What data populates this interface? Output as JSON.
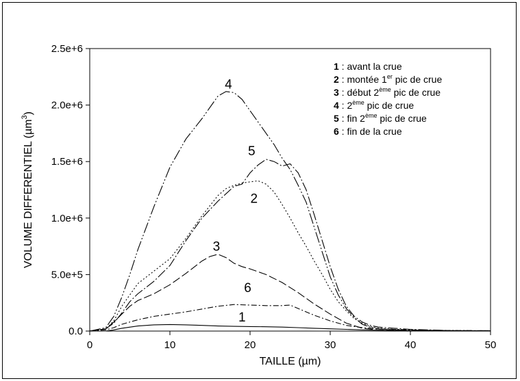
{
  "chart_data": {
    "type": "line",
    "title": "",
    "xlabel": "TAILLE (µm)",
    "ylabel": "VOLUME DIFFERENTIEL (µm",
    "ylabel_sup": "3",
    "ylabel_end": ")",
    "xlim": [
      0,
      50
    ],
    "ylim": [
      0,
      2500000
    ],
    "x_ticks": [
      0,
      10,
      20,
      30,
      40,
      50
    ],
    "x_tick_labels": [
      "0",
      "10",
      "20",
      "30",
      "40",
      "50"
    ],
    "y_ticks": [
      0,
      500000,
      1000000,
      1500000,
      2000000,
      2500000
    ],
    "y_tick_labels": [
      "0.0",
      "5.0e+5",
      "1.0e+6",
      "1.5e+6",
      "2.0e+6",
      "2.5e+6"
    ],
    "grid": false,
    "legend_position": "top-right",
    "legend": [
      {
        "num": "1",
        "text": " : avant la crue"
      },
      {
        "num": "2",
        "pre": " : montée 1",
        "sup": "er",
        "post": " pic de crue"
      },
      {
        "num": "3",
        "pre": " : début 2",
        "sup": "ème",
        "post": " pic de crue"
      },
      {
        "num": "4",
        "pre": " : 2",
        "sup": "ème",
        "post": " pic de crue"
      },
      {
        "num": "5",
        "pre": " : fin 2",
        "sup": "ème",
        "post": " pic de crue"
      },
      {
        "num": "6",
        "text": " : fin de la crue"
      }
    ],
    "series": [
      {
        "label": "1",
        "dash": "none",
        "label_at": [
          19,
          85000
        ],
        "x": [
          0,
          2,
          3,
          4,
          6,
          8,
          10,
          12,
          14,
          16,
          18,
          20,
          22,
          24,
          26,
          28,
          30,
          32,
          34,
          36,
          40,
          45,
          50
        ],
        "y": [
          0,
          0,
          10000,
          25000,
          45000,
          55000,
          58000,
          55000,
          50000,
          45000,
          42000,
          40000,
          38000,
          35000,
          30000,
          25000,
          20000,
          15000,
          10000,
          8000,
          5000,
          3000,
          2000
        ]
      },
      {
        "label": "2",
        "dash": "2,3",
        "label_at": [
          20.5,
          1135000
        ],
        "x": [
          0,
          2,
          3,
          4,
          5,
          6,
          8,
          10,
          12,
          14,
          16,
          17,
          18,
          19,
          20,
          21,
          22,
          23,
          24,
          25,
          26,
          27,
          28,
          29,
          30,
          31,
          32,
          33,
          34,
          35,
          36,
          38,
          40,
          45,
          50
        ],
        "y": [
          0,
          20000,
          90000,
          220000,
          320000,
          420000,
          530000,
          640000,
          820000,
          1020000,
          1200000,
          1260000,
          1290000,
          1310000,
          1320000,
          1330000,
          1300000,
          1230000,
          1120000,
          1000000,
          870000,
          750000,
          620000,
          500000,
          370000,
          260000,
          180000,
          110000,
          70000,
          40000,
          25000,
          15000,
          10000,
          5000,
          3000
        ]
      },
      {
        "label": "3",
        "dash": "12,4",
        "label_at": [
          15.8,
          710000
        ],
        "x": [
          0,
          2,
          3,
          4,
          5,
          6,
          8,
          10,
          12,
          14,
          15,
          16,
          17,
          18,
          19,
          20,
          22,
          24,
          26,
          28,
          30,
          32,
          34,
          36,
          40,
          45,
          50
        ],
        "y": [
          0,
          20000,
          80000,
          150000,
          220000,
          270000,
          330000,
          410000,
          510000,
          620000,
          660000,
          680000,
          650000,
          600000,
          570000,
          550000,
          500000,
          430000,
          340000,
          240000,
          150000,
          70000,
          25000,
          10000,
          5000,
          2000,
          1000
        ]
      },
      {
        "label": "4",
        "dash": "16,3,2,3,2,3",
        "label_at": [
          17.3,
          2145000
        ],
        "x": [
          0,
          2,
          3,
          4,
          5,
          6,
          8,
          10,
          12,
          14,
          16,
          17,
          18,
          19,
          20,
          21,
          22,
          23,
          24,
          25,
          26,
          27,
          28,
          29,
          30,
          31,
          32,
          33,
          34,
          35,
          36,
          38,
          40,
          45,
          50
        ],
        "y": [
          0,
          30000,
          130000,
          300000,
          500000,
          720000,
          1100000,
          1450000,
          1700000,
          1880000,
          2080000,
          2120000,
          2110000,
          2050000,
          1950000,
          1850000,
          1750000,
          1650000,
          1530000,
          1430000,
          1290000,
          1140000,
          920000,
          700000,
          480000,
          320000,
          200000,
          120000,
          60000,
          35000,
          20000,
          12000,
          8000,
          4000,
          2000
        ]
      },
      {
        "label": "5",
        "dash": "14,3,2,3",
        "label_at": [
          20.2,
          1555000
        ],
        "x": [
          0,
          2,
          3,
          4,
          5,
          6,
          8,
          10,
          12,
          14,
          16,
          18,
          19,
          20,
          21,
          22,
          23,
          24,
          25,
          26,
          27,
          28,
          29,
          30,
          31,
          32,
          33,
          34,
          35,
          36,
          38,
          40,
          45,
          50
        ],
        "y": [
          0,
          20000,
          70000,
          160000,
          260000,
          330000,
          440000,
          580000,
          800000,
          1000000,
          1150000,
          1280000,
          1300000,
          1400000,
          1470000,
          1520000,
          1500000,
          1460000,
          1480000,
          1400000,
          1250000,
          1030000,
          800000,
          570000,
          370000,
          220000,
          130000,
          80000,
          50000,
          35000,
          25000,
          15000,
          5000,
          3000
        ]
      },
      {
        "label": "6",
        "dash": "8,3,2,3",
        "label_at": [
          19.7,
          345000
        ],
        "x": [
          0,
          2,
          3,
          4,
          6,
          8,
          10,
          12,
          14,
          16,
          18,
          20,
          22,
          24,
          25,
          26,
          28,
          30,
          32,
          34,
          36,
          38,
          40,
          45,
          50
        ],
        "y": [
          0,
          10000,
          30000,
          60000,
          100000,
          130000,
          150000,
          170000,
          195000,
          220000,
          235000,
          230000,
          225000,
          225000,
          230000,
          200000,
          140000,
          90000,
          50000,
          30000,
          20000,
          15000,
          10000,
          5000,
          3000
        ]
      }
    ]
  }
}
